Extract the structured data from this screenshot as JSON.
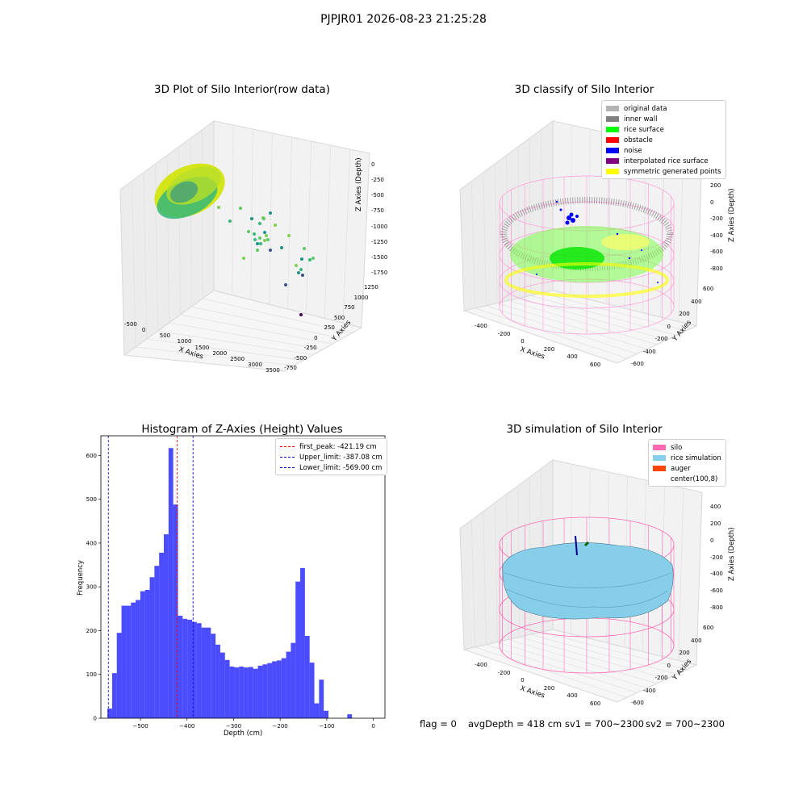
{
  "suptitle": "PJPJR01 2026-08-23 21:25:28",
  "panel1": {
    "title": "3D Plot of Silo Interior(row data)",
    "xlabel": "X Axies",
    "ylabel": "Y Axies",
    "zlabel": "Z Axies (Depth)",
    "xticks": [
      "-500",
      "0",
      "500",
      "1000",
      "1500",
      "2000",
      "2500",
      "3000",
      "3500"
    ],
    "yticks": [
      "-750",
      "-500",
      "-250",
      "0",
      "250",
      "500",
      "750",
      "1000",
      "1250"
    ],
    "zticks": [
      "0",
      "-250",
      "-500",
      "-750",
      "-1000",
      "-1250",
      "-1500",
      "-1750"
    ]
  },
  "panel2": {
    "title": "3D classify of Silo Interior",
    "xlabel": "X Axies",
    "ylabel": "Y Axies",
    "zlabel": "Z Axies (Depth)",
    "xticks": [
      "-400",
      "-200",
      "0",
      "200",
      "400",
      "600"
    ],
    "yticks": [
      "-600",
      "-400",
      "-200",
      "0",
      "200",
      "400",
      "600"
    ],
    "zticks": [
      "200",
      "0",
      "-200",
      "-400",
      "-600",
      "-800"
    ],
    "legend": [
      {
        "label": "original data",
        "color": "#b3b3b3"
      },
      {
        "label": "inner wall",
        "color": "#808080"
      },
      {
        "label": "rice surface",
        "color": "#00ff00"
      },
      {
        "label": "obstacle",
        "color": "#ff0000"
      },
      {
        "label": "noise",
        "color": "#0000ff"
      },
      {
        "label": "interpolated rice surface",
        "color": "#800080"
      },
      {
        "label": "symmetric generated points",
        "color": "#ffff00"
      }
    ]
  },
  "panel4": {
    "title": "3D simulation of Silo Interior",
    "xlabel": "X Axies",
    "ylabel": "Y Axies",
    "zlabel": "Z Axies (Depth)",
    "xticks": [
      "-400",
      "-200",
      "0",
      "200",
      "400",
      "600"
    ],
    "yticks": [
      "-600",
      "-400",
      "-200",
      "0",
      "200",
      "400",
      "600"
    ],
    "zticks": [
      "400",
      "200",
      "0",
      "-200",
      "-400",
      "-600",
      "-800"
    ],
    "legend": [
      {
        "label": "silo",
        "color": "#ff69b4"
      },
      {
        "label": "rice simulation",
        "color": "#87ceeb"
      },
      {
        "label": "auger",
        "color": "#ff4500"
      },
      {
        "label": "center(100,8)",
        "color": "#ffffff"
      }
    ]
  },
  "footer": {
    "flag": "flag = 0",
    "avg": "avgDepth = 418 cm",
    "sv1": "sv1 = 700~2300",
    "sv2": "sv2 = 700~2300"
  },
  "chart_data": [
    {
      "type": "bar",
      "title": "Histogram of Z-Axies (Height) Values",
      "xlabel": "Depth (cm)",
      "ylabel": "Frequency",
      "xlim": [
        -585,
        25
      ],
      "ylim": [
        0,
        645
      ],
      "xticks": [
        -500,
        -400,
        -300,
        -200,
        -100,
        0
      ],
      "yticks": [
        0,
        100,
        200,
        300,
        400,
        500,
        600
      ],
      "bin_width": 10.1,
      "bin_start": -571,
      "values": [
        22,
        103,
        195,
        257,
        257,
        264,
        270,
        290,
        293,
        322,
        348,
        378,
        420,
        617,
        488,
        234,
        227,
        225,
        220,
        217,
        207,
        207,
        193,
        168,
        150,
        133,
        118,
        116,
        118,
        116,
        117,
        113,
        120,
        123,
        126,
        130,
        132,
        137,
        152,
        172,
        312,
        343,
        188,
        127,
        34,
        88,
        17,
        0,
        0,
        0,
        0,
        9
      ],
      "bar_color": "#0000ff",
      "lines": [
        {
          "label": "first_peak: -421.19 cm",
          "x": -421.19,
          "color": "#ff0000"
        },
        {
          "label": "Upper_limit: -387.08 cm",
          "x": -387.08,
          "color": "#0000cd"
        },
        {
          "label": "Lower_limit: -569.00 cm",
          "x": -569.0,
          "color": "#0000cd"
        }
      ]
    }
  ]
}
